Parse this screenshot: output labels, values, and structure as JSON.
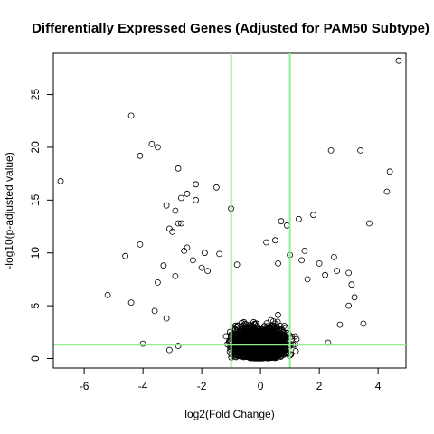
{
  "chart_data": {
    "type": "scatter",
    "title": "Differentially Expressed Genes (Adjusted for PAM50 Subtype)",
    "xlabel": "log2(Fold Change)",
    "ylabel": "-log10(p-adjusted value)",
    "xlim": [
      -7.05,
      4.95
    ],
    "ylim": [
      -0.9,
      28.9
    ],
    "x_ticks": [
      -6,
      -4,
      -2,
      0,
      2,
      4
    ],
    "y_ticks": [
      0,
      5,
      10,
      15,
      20,
      25
    ],
    "grid": false,
    "legend": "none",
    "reference_lines": {
      "vertical": [
        -1,
        1
      ],
      "horizontal": [
        1.3
      ]
    },
    "reference_line_color": "#90ee90",
    "marker_color": "#000000",
    "marker": "open-circle",
    "cloud_note": "dense cloud of several thousand genes concentrated near x=0 with y up to about 7",
    "points": [
      {
        "x": 4.7,
        "y": 28.2
      },
      {
        "x": -6.8,
        "y": 16.8
      },
      {
        "x": -4.4,
        "y": 23.0
      },
      {
        "x": -3.7,
        "y": 20.3
      },
      {
        "x": -3.5,
        "y": 20.0
      },
      {
        "x": -4.1,
        "y": 19.2
      },
      {
        "x": 2.4,
        "y": 19.7
      },
      {
        "x": 3.4,
        "y": 19.7
      },
      {
        "x": -2.8,
        "y": 18.0
      },
      {
        "x": 4.4,
        "y": 17.7
      },
      {
        "x": -2.2,
        "y": 16.5
      },
      {
        "x": -1.5,
        "y": 16.2
      },
      {
        "x": 4.3,
        "y": 15.8
      },
      {
        "x": -2.5,
        "y": 15.6
      },
      {
        "x": -2.7,
        "y": 15.2
      },
      {
        "x": -2.2,
        "y": 15.0
      },
      {
        "x": -3.2,
        "y": 14.5
      },
      {
        "x": -2.9,
        "y": 14.0
      },
      {
        "x": -1.0,
        "y": 14.2
      },
      {
        "x": 1.8,
        "y": 13.6
      },
      {
        "x": 1.3,
        "y": 13.2
      },
      {
        "x": 0.7,
        "y": 13.0
      },
      {
        "x": -2.7,
        "y": 12.8
      },
      {
        "x": -2.8,
        "y": 12.8
      },
      {
        "x": 3.7,
        "y": 12.8
      },
      {
        "x": 0.9,
        "y": 12.6
      },
      {
        "x": -3.1,
        "y": 12.3
      },
      {
        "x": -3.0,
        "y": 12.0
      },
      {
        "x": -4.1,
        "y": 10.8
      },
      {
        "x": -2.5,
        "y": 10.5
      },
      {
        "x": -2.6,
        "y": 10.2
      },
      {
        "x": 0.5,
        "y": 11.2
      },
      {
        "x": 0.2,
        "y": 11.0
      },
      {
        "x": -4.6,
        "y": 9.7
      },
      {
        "x": 2.5,
        "y": 9.6
      },
      {
        "x": 1.4,
        "y": 9.3
      },
      {
        "x": 2.0,
        "y": 9.0
      },
      {
        "x": -3.3,
        "y": 8.8
      },
      {
        "x": -2.0,
        "y": 8.6
      },
      {
        "x": -1.8,
        "y": 8.3
      },
      {
        "x": 2.6,
        "y": 8.3
      },
      {
        "x": 3.0,
        "y": 8.1
      },
      {
        "x": 2.2,
        "y": 7.9
      },
      {
        "x": -2.9,
        "y": 7.8
      },
      {
        "x": -3.5,
        "y": 7.2
      },
      {
        "x": 3.1,
        "y": 7.0
      },
      {
        "x": 1.6,
        "y": 7.5
      },
      {
        "x": -5.2,
        "y": 6.0
      },
      {
        "x": -4.4,
        "y": 5.3
      },
      {
        "x": 3.2,
        "y": 5.8
      },
      {
        "x": 3.0,
        "y": 5.0
      },
      {
        "x": -3.6,
        "y": 4.5
      },
      {
        "x": -3.2,
        "y": 3.8
      },
      {
        "x": 2.7,
        "y": 3.2
      },
      {
        "x": 3.5,
        "y": 3.3
      },
      {
        "x": -4.0,
        "y": 1.4
      },
      {
        "x": -3.1,
        "y": 0.8
      },
      {
        "x": -2.8,
        "y": 1.2
      },
      {
        "x": 1.2,
        "y": 0.7
      },
      {
        "x": 2.3,
        "y": 1.5
      },
      {
        "x": 1.5,
        "y": 10.2
      },
      {
        "x": 1.0,
        "y": 9.8
      },
      {
        "x": -1.4,
        "y": 9.9
      },
      {
        "x": -1.9,
        "y": 10.0
      },
      {
        "x": 0.6,
        "y": 9.0
      },
      {
        "x": -0.8,
        "y": 8.9
      },
      {
        "x": -2.3,
        "y": 9.3
      }
    ]
  }
}
